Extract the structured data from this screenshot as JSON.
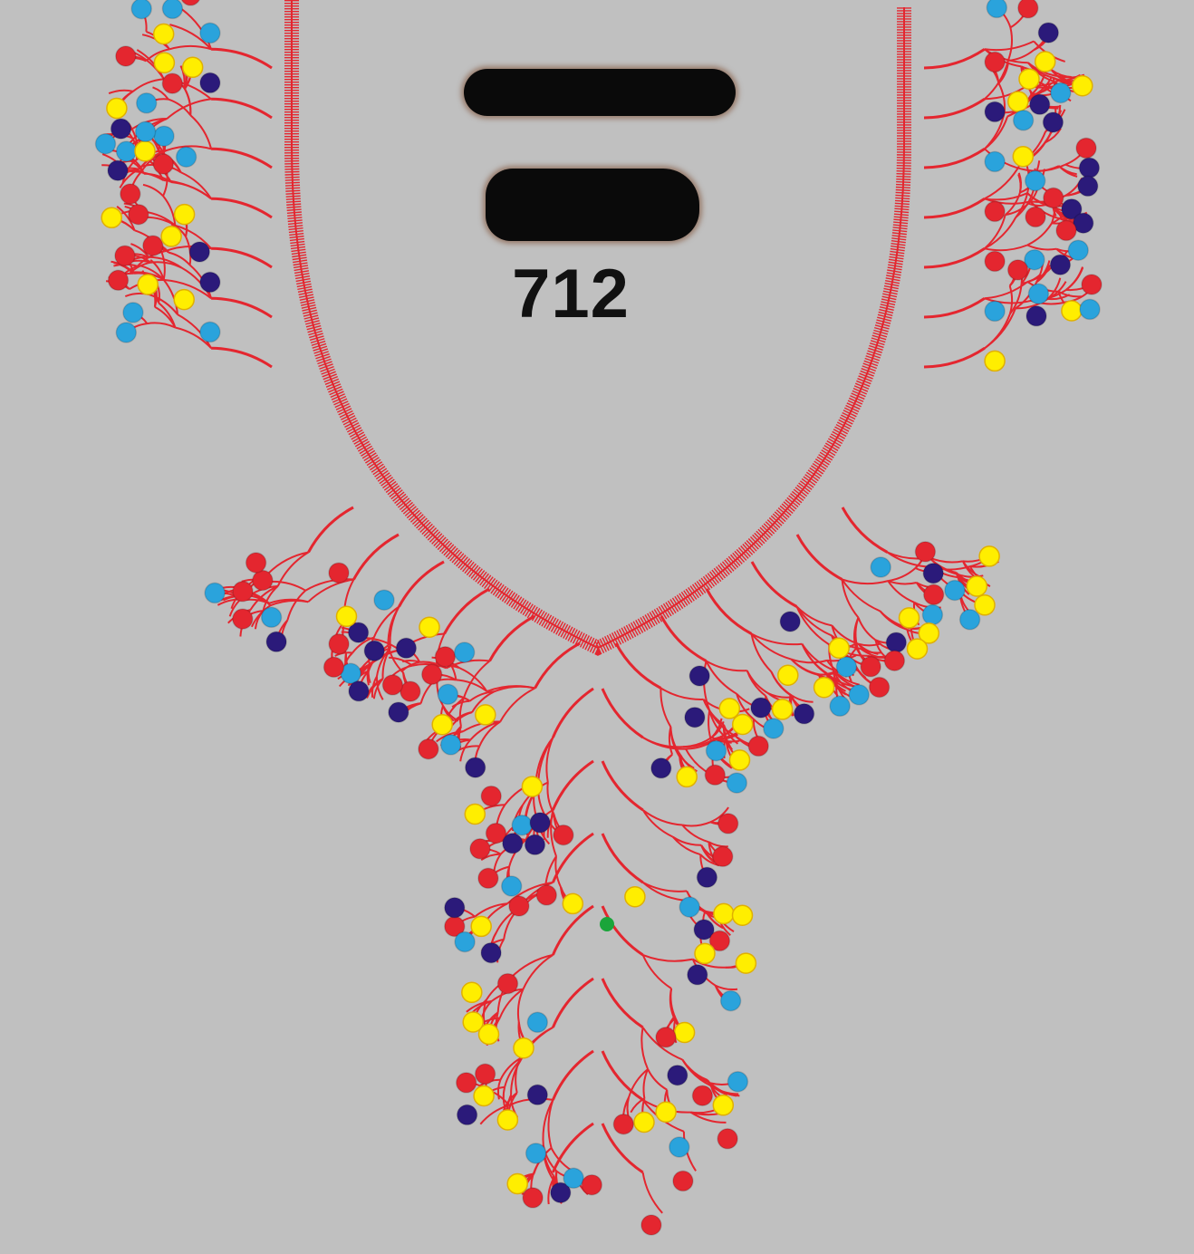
{
  "design": {
    "number": "712",
    "background_color": "#c0c0c0",
    "neckline_color": "#e4262f",
    "stem_color": "#e4262f",
    "dot_colors": {
      "red": "#e4262f",
      "yellow": "#ffee00",
      "sky_blue": "#2aa3dc",
      "navy": "#2b1a7a"
    },
    "redactions": 2,
    "stitch_marker_color": "#1aa53a"
  }
}
